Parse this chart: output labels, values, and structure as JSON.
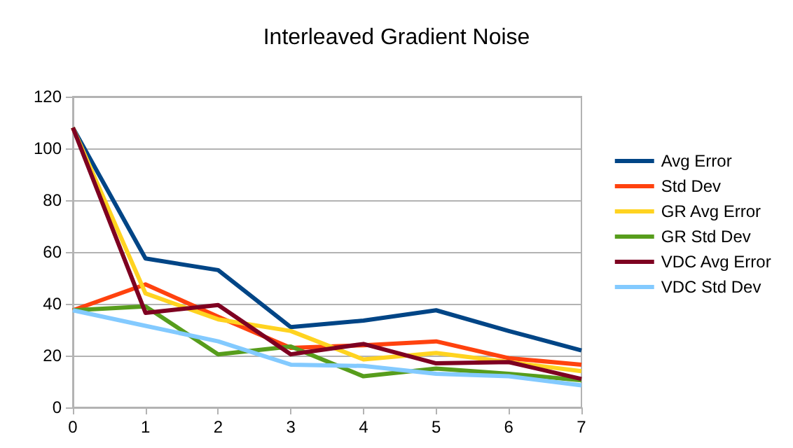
{
  "chart_data": {
    "type": "line",
    "title": "Interleaved Gradient Noise",
    "x": [
      0,
      1,
      2,
      3,
      4,
      5,
      6,
      7
    ],
    "xlim": [
      0,
      7
    ],
    "xticks": [
      0,
      1,
      2,
      3,
      4,
      5,
      6,
      7
    ],
    "ylim": [
      0,
      120
    ],
    "yticks": [
      0,
      20,
      40,
      60,
      80,
      100,
      120
    ],
    "grid": "y",
    "legend": "right",
    "marker": "none",
    "line_style": "solid",
    "series": [
      {
        "name": "Avg Error",
        "color": "#004586",
        "values": [
          108,
          57.5,
          53,
          31,
          33.5,
          37.5,
          29.5,
          22
        ]
      },
      {
        "name": "Std Dev",
        "color": "#ff420e",
        "values": [
          37.5,
          47.5,
          35,
          23,
          24,
          25.5,
          19,
          16.5
        ]
      },
      {
        "name": "GR Avg Error",
        "color": "#ffd320",
        "values": [
          108,
          44,
          34,
          29.5,
          18.5,
          21,
          17.5,
          14
        ]
      },
      {
        "name": "GR Std Dev",
        "color": "#579d1c",
        "values": [
          37.5,
          39,
          20.5,
          23.5,
          12,
          15,
          13,
          10.5
        ]
      },
      {
        "name": "VDC Avg Error",
        "color": "#7e0021",
        "values": [
          108,
          36.5,
          39.5,
          20.5,
          24.5,
          17,
          17.5,
          11
        ]
      },
      {
        "name": "VDC Std Dev",
        "color": "#83caff",
        "values": [
          37.5,
          31.5,
          25.5,
          16.5,
          16,
          13,
          12,
          8.5
        ]
      }
    ]
  }
}
